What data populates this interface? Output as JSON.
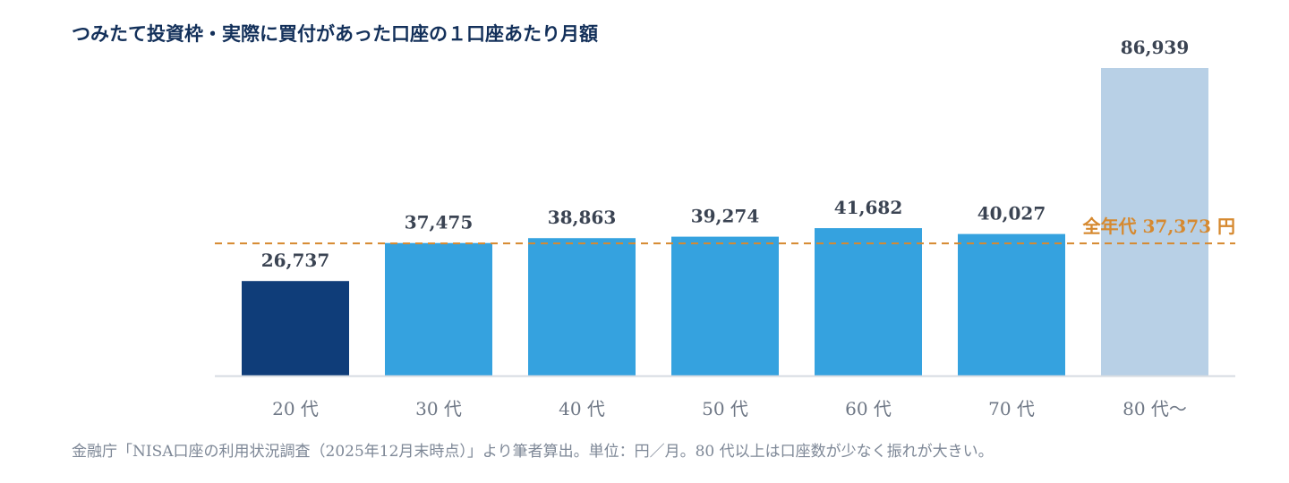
{
  "chart_data": {
    "type": "bar",
    "title": "つみたて投資枠・実際に買付があった口座の１口座あたり月額",
    "categories": [
      "20 代",
      "30 代",
      "40 代",
      "50 代",
      "60 代",
      "70 代",
      "80 代〜"
    ],
    "values": [
      26737,
      37475,
      38863,
      39274,
      41682,
      40027,
      86939
    ],
    "value_labels": [
      "26,737",
      "37,475",
      "38,863",
      "39,274",
      "41,682",
      "40,027",
      "86,939"
    ],
    "bar_colors": [
      "#0f3d79",
      "#35a2df",
      "#35a2df",
      "#35a2df",
      "#35a2df",
      "#35a2df",
      "#b8d0e6"
    ],
    "reference_line": {
      "value": 37373,
      "label": "全年代 37,373 円",
      "color": "#d6892f",
      "style": "dashed"
    },
    "ylim": [
      0,
      86939
    ],
    "xlabel": "",
    "ylabel": "",
    "grid": false,
    "footnote": "金融庁「NISA口座の利用状況調査（2025年12月末時点）」より筆者算出。単位：円／月。80 代以上は口座数が少なく振れが大きい。"
  }
}
